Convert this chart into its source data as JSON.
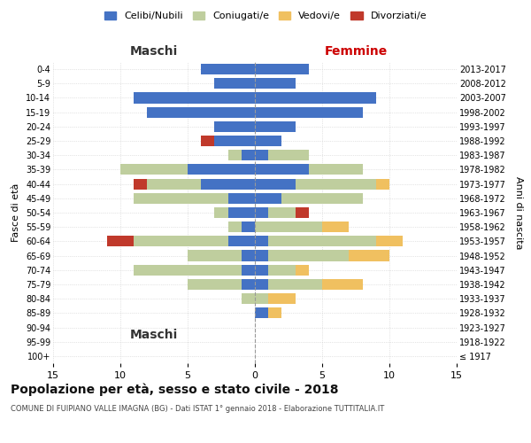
{
  "age_groups": [
    "100+",
    "95-99",
    "90-94",
    "85-89",
    "80-84",
    "75-79",
    "70-74",
    "65-69",
    "60-64",
    "55-59",
    "50-54",
    "45-49",
    "40-44",
    "35-39",
    "30-34",
    "25-29",
    "20-24",
    "15-19",
    "10-14",
    "5-9",
    "0-4"
  ],
  "birth_years": [
    "≤ 1917",
    "1918-1922",
    "1923-1927",
    "1928-1932",
    "1933-1937",
    "1938-1942",
    "1943-1947",
    "1948-1952",
    "1953-1957",
    "1958-1962",
    "1963-1967",
    "1968-1972",
    "1973-1977",
    "1978-1982",
    "1983-1987",
    "1988-1992",
    "1993-1997",
    "1998-2002",
    "2003-2007",
    "2008-2012",
    "2013-2017"
  ],
  "maschi": {
    "celibi": [
      0,
      0,
      0,
      0,
      0,
      1,
      1,
      1,
      2,
      1,
      2,
      2,
      4,
      5,
      1,
      3,
      3,
      8,
      9,
      3,
      4
    ],
    "coniugati": [
      0,
      0,
      0,
      0,
      1,
      4,
      8,
      4,
      7,
      1,
      1,
      7,
      4,
      5,
      1,
      0,
      0,
      0,
      0,
      0,
      0
    ],
    "vedovi": [
      0,
      0,
      0,
      0,
      0,
      0,
      0,
      0,
      0,
      0,
      0,
      0,
      0,
      0,
      0,
      0,
      0,
      0,
      0,
      0,
      0
    ],
    "divorziati": [
      0,
      0,
      0,
      0,
      0,
      0,
      0,
      0,
      2,
      0,
      0,
      0,
      1,
      0,
      0,
      1,
      0,
      0,
      0,
      0,
      0
    ]
  },
  "femmine": {
    "nubili": [
      0,
      0,
      0,
      1,
      0,
      1,
      1,
      1,
      1,
      0,
      1,
      2,
      3,
      4,
      1,
      2,
      3,
      8,
      9,
      3,
      4
    ],
    "coniugate": [
      0,
      0,
      0,
      0,
      1,
      4,
      2,
      6,
      8,
      5,
      2,
      6,
      6,
      4,
      3,
      0,
      0,
      0,
      0,
      0,
      0
    ],
    "vedove": [
      0,
      0,
      0,
      1,
      2,
      3,
      1,
      3,
      2,
      2,
      0,
      0,
      1,
      0,
      0,
      0,
      0,
      0,
      0,
      0,
      0
    ],
    "divorziate": [
      0,
      0,
      0,
      0,
      0,
      0,
      0,
      0,
      0,
      0,
      1,
      0,
      0,
      0,
      0,
      0,
      0,
      0,
      0,
      0,
      0
    ]
  },
  "colors": {
    "celibi_nubili": "#4472C4",
    "coniugati": "#BFCE9E",
    "vedovi": "#F0C060",
    "divorziati": "#C0392B"
  },
  "title": "Popolazione per età, sesso e stato civile - 2018",
  "subtitle": "COMUNE DI FUIPIANO VALLE IMAGNA (BG) - Dati ISTAT 1° gennaio 2018 - Elaborazione TUTTITALIA.IT",
  "ylabel": "Fasce di età",
  "ylabel_right": "Anni di nascita",
  "xlabel_left": "Maschi",
  "xlabel_right": "Femmine",
  "xlim": 15,
  "xticks": [
    -15,
    -10,
    -5,
    0,
    5,
    10,
    15
  ],
  "xticklabels": [
    "15",
    "10",
    "5",
    "0",
    "5",
    "10",
    "15"
  ],
  "legend_labels": [
    "Celibi/Nubili",
    "Coniugati/e",
    "Vedovi/e",
    "Divorziati/e"
  ],
  "bg_color": "#FFFFFF",
  "grid_color": "#CCCCCC"
}
